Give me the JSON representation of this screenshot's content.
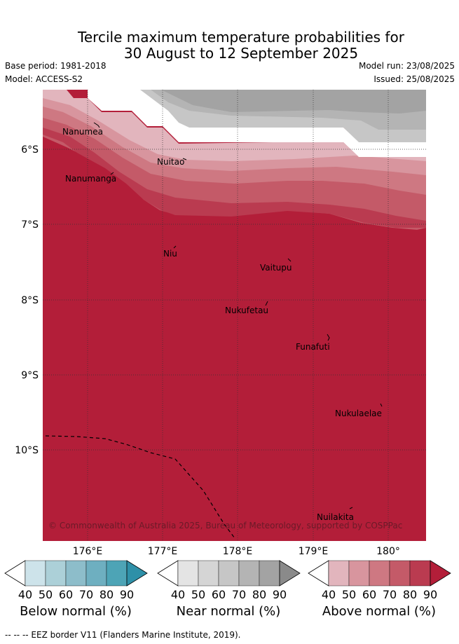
{
  "title_line1": "Tercile maximum temperature probabilities for",
  "title_line2": "30 August to 12 September 2025",
  "base_period": "Base period: 1981-2018",
  "model": "Model: ACCESS-S2",
  "model_run": "Model run: 23/08/2025",
  "issued": "Issued: 25/08/2025",
  "lon_labels": [
    "176°E",
    "177°E",
    "178°E",
    "179°E",
    "180°"
  ],
  "lat_labels": [
    "6°S",
    "7°S",
    "8°S",
    "9°S",
    "10°S"
  ],
  "places": [
    "Nanumea",
    "Nanumanga",
    "Nuitao",
    "Niu",
    "Vaitupu",
    "Nukufetau",
    "Funafuti",
    "Nukulaelae",
    "Nuilakita"
  ],
  "copyright": "© Commonwealth of Australia 2025, Bureau of Meteorology, supported by COSPPac",
  "colorbars": [
    {
      "title": "Below normal (%)",
      "ticks": [
        "40",
        "50",
        "60",
        "70",
        "80",
        "90"
      ],
      "colors": [
        "#ffffff",
        "#cde3ea",
        "#acd0d8",
        "#8dbdca",
        "#6eafc0",
        "#4da4b6",
        "#2e90a8"
      ]
    },
    {
      "title": "Near normal (%)",
      "ticks": [
        "40",
        "50",
        "60",
        "70",
        "80",
        "90"
      ],
      "colors": [
        "#ffffff",
        "#e4e4e4",
        "#d5d5d5",
        "#c6c6c6",
        "#b4b4b4",
        "#a3a3a3",
        "#8a8a8a"
      ]
    },
    {
      "title": "Above normal (%)",
      "ticks": [
        "40",
        "50",
        "60",
        "70",
        "80",
        "90"
      ],
      "colors": [
        "#ffffff",
        "#e2b5bd",
        "#d8959e",
        "#ce7882",
        "#c45a68",
        "#ba3b50",
        "#b31e39"
      ]
    }
  ],
  "footer": "--  --  -- EEZ border V11 (Flanders Marine Institute, 2019)."
}
